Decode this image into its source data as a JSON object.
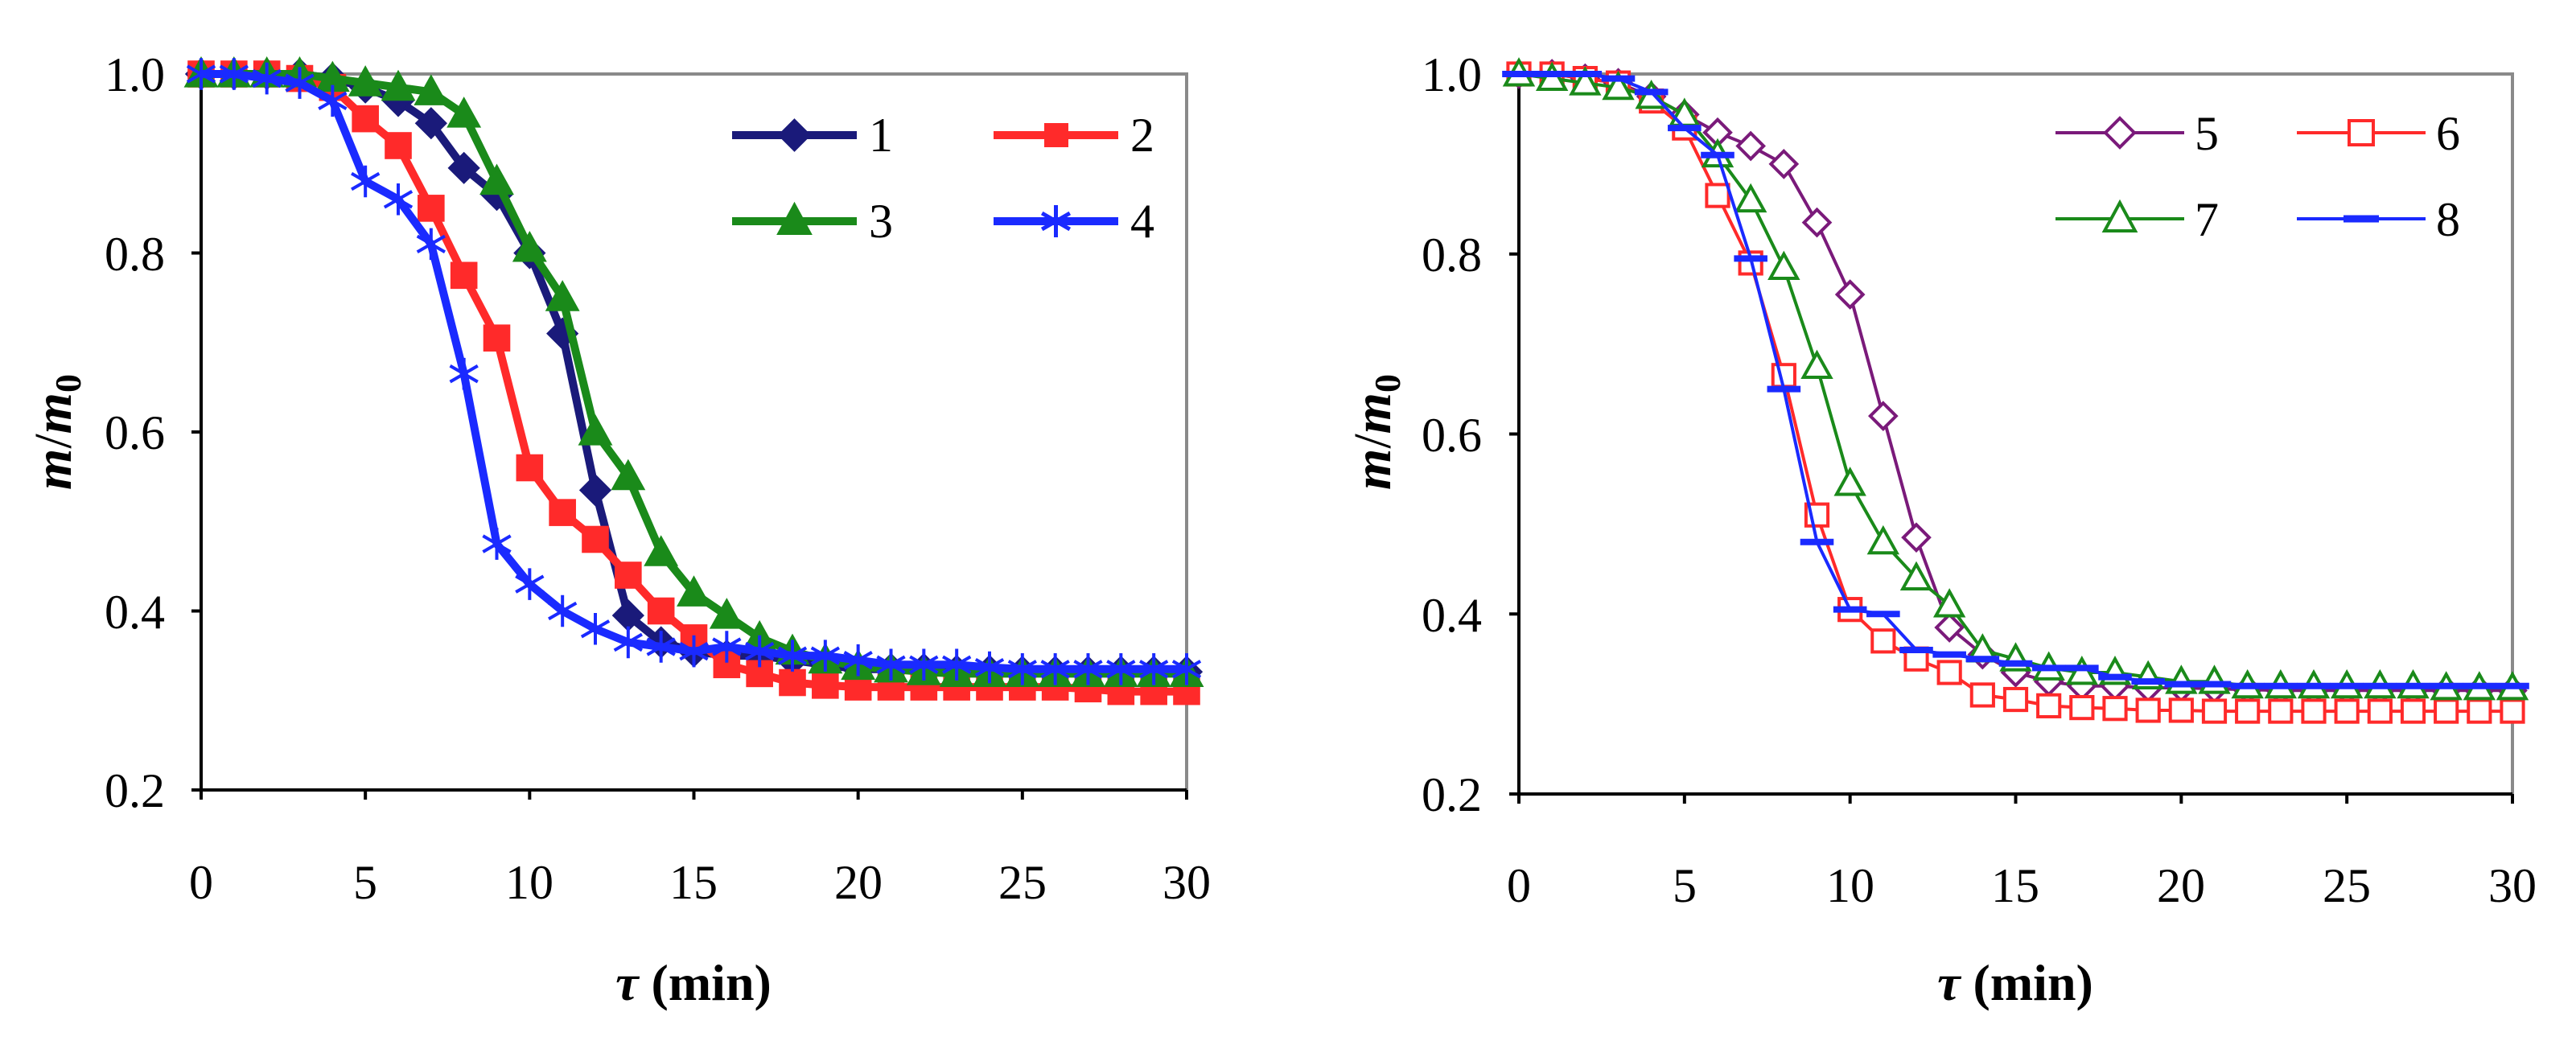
{
  "chart_data": [
    {
      "type": "line",
      "panel": "left",
      "xlabel_symbol": "τ",
      "xlabel_unit": " (min)",
      "ylabel_main": "m",
      "ylabel_sep": "/",
      "ylabel_denom": "m",
      "ylabel_sub": "0",
      "xlim": [
        0,
        30
      ],
      "ylim": [
        0.2,
        1.0
      ],
      "xticks": [
        0,
        5,
        10,
        15,
        20,
        25,
        30
      ],
      "xtick_labels": [
        "0",
        "5",
        "10",
        "15",
        "20",
        "25",
        "30"
      ],
      "yticks": [
        0.2,
        0.4,
        0.6,
        0.8,
        1.0
      ],
      "ytick_labels": [
        "0.2",
        "0.4",
        "0.6",
        "0.8",
        "1.0"
      ],
      "grid": false,
      "legend_position": "top-right",
      "series": [
        {
          "name": "1",
          "color": "#1a1a7a",
          "marker": "diamond-filled",
          "x": [
            0,
            1,
            2,
            3,
            4,
            5,
            6,
            7,
            8,
            9,
            10,
            11,
            12,
            13,
            14,
            15,
            16,
            17,
            18,
            19,
            20,
            21,
            22,
            23,
            24,
            25,
            26,
            27,
            28,
            29,
            30
          ],
          "y": [
            1.0,
            1.0,
            1.0,
            1.0,
            0.995,
            0.985,
            0.97,
            0.945,
            0.895,
            0.865,
            0.8,
            0.71,
            0.535,
            0.395,
            0.365,
            0.355,
            0.35,
            0.35,
            0.345,
            0.34,
            0.335,
            0.335,
            0.335,
            0.333,
            0.333,
            0.332,
            0.332,
            0.332,
            0.332,
            0.332,
            0.332
          ]
        },
        {
          "name": "2",
          "color": "#ff2a2a",
          "marker": "square-filled",
          "x": [
            0,
            1,
            2,
            3,
            4,
            5,
            6,
            7,
            8,
            9,
            10,
            11,
            12,
            13,
            14,
            15,
            16,
            17,
            18,
            19,
            20,
            21,
            22,
            23,
            24,
            25,
            26,
            27,
            28,
            29,
            30
          ],
          "y": [
            1.0,
            1.0,
            1.0,
            0.995,
            0.985,
            0.95,
            0.92,
            0.85,
            0.775,
            0.705,
            0.56,
            0.51,
            0.48,
            0.44,
            0.4,
            0.37,
            0.34,
            0.33,
            0.32,
            0.317,
            0.315,
            0.315,
            0.315,
            0.315,
            0.315,
            0.315,
            0.315,
            0.313,
            0.31,
            0.31,
            0.31
          ]
        },
        {
          "name": "3",
          "color": "#1a8a1a",
          "marker": "triangle-filled",
          "x": [
            0,
            1,
            2,
            3,
            4,
            5,
            6,
            7,
            8,
            9,
            10,
            11,
            12,
            13,
            14,
            15,
            16,
            17,
            18,
            19,
            20,
            21,
            22,
            23,
            24,
            25,
            26,
            27,
            28,
            29,
            30
          ],
          "y": [
            1.0,
            1.0,
            1.0,
            1.0,
            0.995,
            0.99,
            0.985,
            0.98,
            0.955,
            0.88,
            0.805,
            0.75,
            0.6,
            0.55,
            0.465,
            0.42,
            0.395,
            0.37,
            0.355,
            0.345,
            0.338,
            0.335,
            0.332,
            0.33,
            0.33,
            0.33,
            0.33,
            0.33,
            0.33,
            0.33,
            0.33
          ]
        },
        {
          "name": "4",
          "color": "#1a2aff",
          "marker": "star",
          "x": [
            0,
            1,
            2,
            3,
            4,
            5,
            6,
            7,
            8,
            9,
            10,
            11,
            12,
            13,
            14,
            15,
            16,
            17,
            18,
            19,
            20,
            21,
            22,
            23,
            24,
            25,
            26,
            27,
            28,
            29,
            30
          ],
          "y": [
            1.0,
            1.0,
            0.995,
            0.99,
            0.97,
            0.88,
            0.86,
            0.81,
            0.665,
            0.475,
            0.43,
            0.4,
            0.38,
            0.365,
            0.36,
            0.355,
            0.36,
            0.355,
            0.35,
            0.35,
            0.345,
            0.34,
            0.34,
            0.34,
            0.337,
            0.335,
            0.335,
            0.335,
            0.335,
            0.335,
            0.335
          ]
        }
      ]
    },
    {
      "type": "line",
      "panel": "right",
      "xlabel_symbol": "τ",
      "xlabel_unit": " (min)",
      "ylabel_main": "m",
      "ylabel_sep": "/",
      "ylabel_denom": "m",
      "ylabel_sub": "0",
      "xlim": [
        0,
        30
      ],
      "ylim": [
        0.2,
        1.0
      ],
      "xticks": [
        0,
        5,
        10,
        15,
        20,
        25,
        30
      ],
      "xtick_labels": [
        "0",
        "5",
        "10",
        "15",
        "20",
        "25",
        "30"
      ],
      "yticks": [
        0.2,
        0.4,
        0.6,
        0.8,
        1.0
      ],
      "ytick_labels": [
        "0.2",
        "0.4",
        "0.6",
        "0.8",
        "1.0"
      ],
      "grid": false,
      "legend_position": "top-right",
      "series": [
        {
          "name": "5",
          "color": "#7a1a7a",
          "marker": "diamond-open",
          "x": [
            0,
            1,
            2,
            3,
            4,
            5,
            6,
            7,
            8,
            9,
            10,
            11,
            12,
            13,
            14,
            15,
            16,
            17,
            18,
            19,
            20,
            21,
            22,
            23,
            24,
            25,
            26,
            27,
            28,
            29,
            30
          ],
          "y": [
            1.0,
            1.0,
            0.995,
            0.99,
            0.975,
            0.955,
            0.935,
            0.92,
            0.9,
            0.835,
            0.755,
            0.62,
            0.485,
            0.385,
            0.355,
            0.335,
            0.325,
            0.32,
            0.32,
            0.318,
            0.318,
            0.317,
            0.316,
            0.315,
            0.315,
            0.315,
            0.315,
            0.315,
            0.315,
            0.315,
            0.315
          ]
        },
        {
          "name": "6",
          "color": "#ff2a2a",
          "marker": "square-open",
          "x": [
            0,
            1,
            2,
            3,
            4,
            5,
            6,
            7,
            8,
            9,
            10,
            11,
            12,
            13,
            14,
            15,
            16,
            17,
            18,
            19,
            20,
            21,
            22,
            23,
            24,
            25,
            26,
            27,
            28,
            29,
            30
          ],
          "y": [
            1.0,
            1.0,
            0.995,
            0.99,
            0.97,
            0.94,
            0.865,
            0.79,
            0.665,
            0.51,
            0.405,
            0.37,
            0.35,
            0.335,
            0.31,
            0.305,
            0.298,
            0.296,
            0.295,
            0.293,
            0.293,
            0.292,
            0.292,
            0.292,
            0.292,
            0.292,
            0.292,
            0.292,
            0.292,
            0.292,
            0.292
          ]
        },
        {
          "name": "7",
          "color": "#1a8a1a",
          "marker": "triangle-open",
          "x": [
            0,
            1,
            2,
            3,
            4,
            5,
            6,
            7,
            8,
            9,
            10,
            11,
            12,
            13,
            14,
            15,
            16,
            17,
            18,
            19,
            20,
            21,
            22,
            23,
            24,
            25,
            26,
            27,
            28,
            29,
            30
          ],
          "y": [
            1.0,
            0.995,
            0.99,
            0.985,
            0.975,
            0.955,
            0.91,
            0.86,
            0.785,
            0.675,
            0.545,
            0.48,
            0.44,
            0.41,
            0.36,
            0.35,
            0.34,
            0.335,
            0.335,
            0.33,
            0.325,
            0.325,
            0.32,
            0.32,
            0.32,
            0.32,
            0.32,
            0.32,
            0.318,
            0.318,
            0.318
          ]
        },
        {
          "name": "8",
          "color": "#1a2aff",
          "marker": "dash",
          "x": [
            0,
            1,
            2,
            3,
            4,
            5,
            6,
            7,
            8,
            9,
            10,
            11,
            12,
            13,
            14,
            15,
            16,
            17,
            18,
            19,
            20,
            21,
            22,
            23,
            24,
            25,
            26,
            27,
            28,
            29,
            30
          ],
          "y": [
            1.0,
            1.0,
            1.0,
            0.995,
            0.98,
            0.94,
            0.91,
            0.795,
            0.65,
            0.48,
            0.405,
            0.4,
            0.36,
            0.355,
            0.35,
            0.345,
            0.34,
            0.34,
            0.33,
            0.325,
            0.322,
            0.322,
            0.32,
            0.32,
            0.32,
            0.32,
            0.32,
            0.32,
            0.32,
            0.32,
            0.32
          ]
        }
      ]
    }
  ]
}
